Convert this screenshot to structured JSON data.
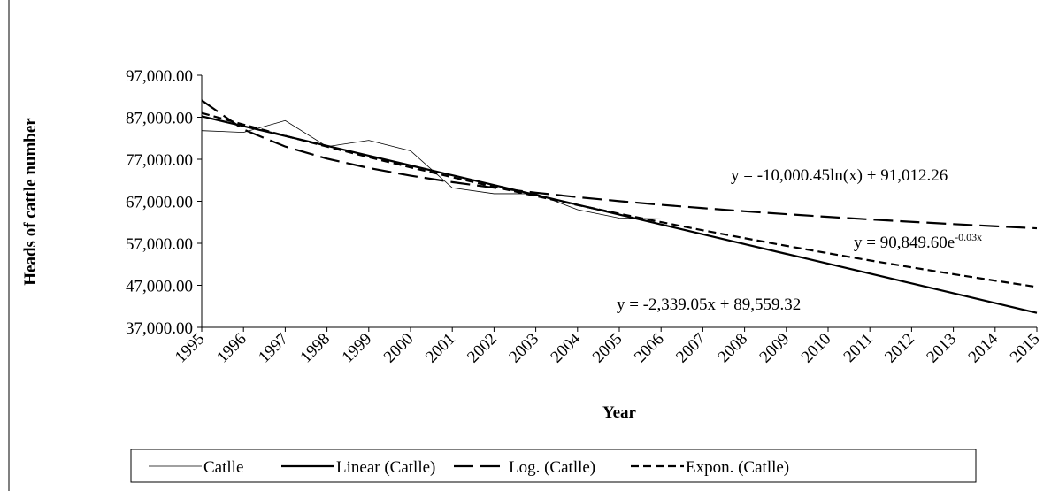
{
  "chart_data": {
    "type": "line",
    "x_label": "Year",
    "y_label": "Heads of cattle number",
    "categories": [
      "1995",
      "1996",
      "1997",
      "1998",
      "1999",
      "2000",
      "2001",
      "2002",
      "2003",
      "2004",
      "2005",
      "2006",
      "2007",
      "2008",
      "2009",
      "2010",
      "2011",
      "2012",
      "2013",
      "2014",
      "2015"
    ],
    "ylim": [
      37000,
      97000
    ],
    "yticks": [
      {
        "value": 37000,
        "label": "37,000.00"
      },
      {
        "value": 47000,
        "label": "47,000.00"
      },
      {
        "value": 57000,
        "label": "57,000.00"
      },
      {
        "value": 67000,
        "label": "67,000.00"
      },
      {
        "value": 77000,
        "label": "77,000.00"
      },
      {
        "value": 87000,
        "label": "87,000.00"
      },
      {
        "value": 97000,
        "label": "97,000.00"
      }
    ],
    "series": [
      {
        "name": "Catlle",
        "color": "#000000",
        "dash": "solid",
        "width": 0.8,
        "values": [
          83800,
          83400,
          86200,
          80000,
          81500,
          79000,
          70200,
          68800,
          68800,
          65000,
          63000,
          62800,
          null,
          null,
          null,
          null,
          null,
          null,
          null,
          null,
          null
        ]
      },
      {
        "name": "Linear (Catlle)",
        "color": "#000000",
        "dash": "solid",
        "width": 2.2,
        "values": [
          87220,
          84881,
          82542,
          80203,
          77864,
          75525,
          73186,
          70847,
          68508,
          66169,
          63830,
          61491,
          59152,
          56813,
          54474,
          52135,
          49795,
          47456,
          45117,
          42778,
          40439
        ]
      },
      {
        "name": "Log. (Catlle)",
        "color": "#000000",
        "dash": "long",
        "width": 2.2,
        "values": [
          91012,
          84081,
          80026,
          77149,
          74918,
          73094,
          71553,
          70217,
          69039,
          67986,
          67033,
          66163,
          65362,
          64621,
          63931,
          63285,
          62679,
          62107,
          61567,
          61054,
          60566
        ]
      },
      {
        "name": "Expon. (Catlle)",
        "color": "#000000",
        "dash": "short",
        "width": 2.2,
        "values": [
          88007,
          85254,
          82585,
          80001,
          77498,
          75071,
          72725,
          70445,
          68247,
          66103,
          64040,
          62032,
          60097,
          58217,
          56391,
          54628,
          52920,
          51267,
          49659,
          48105,
          46606
        ]
      }
    ],
    "annotations": [
      {
        "text": "y = -10,000.45ln(x) + 91,012.26"
      },
      {
        "text": "y = 90,849.60e",
        "sup": "-0.03x"
      },
      {
        "text": "y = -2,339.05x + 89,559.32"
      }
    ]
  }
}
